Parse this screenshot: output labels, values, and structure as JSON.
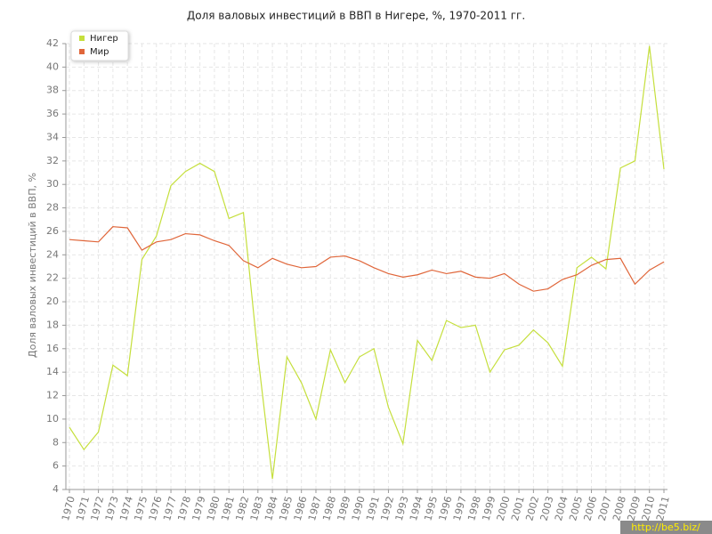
{
  "chart_data": {
    "type": "line",
    "title": "Доля валовых инвестиций в ВВП в Нигере, %, 1970-2011 гг.",
    "y_label": "Доля валовых инвестиций в ВВП, %",
    "categories": [
      "1970",
      "1971",
      "1972",
      "1973",
      "1974",
      "1975",
      "1976",
      "1977",
      "1978",
      "1979",
      "1980",
      "1981",
      "1982",
      "1983",
      "1984",
      "1985",
      "1986",
      "1987",
      "1988",
      "1989",
      "1990",
      "1991",
      "1992",
      "1993",
      "1994",
      "1995",
      "1996",
      "1997",
      "1998",
      "1999",
      "2000",
      "2001",
      "2002",
      "2003",
      "2004",
      "2005",
      "2006",
      "2007",
      "2008",
      "2009",
      "2010",
      "2011"
    ],
    "series": [
      {
        "name": "Нигер",
        "color": "#c5df3c",
        "values": [
          9.3,
          7.4,
          8.9,
          14.6,
          13.7,
          23.6,
          25.6,
          29.9,
          31.1,
          31.8,
          31.1,
          27.1,
          27.6,
          15.4,
          4.9,
          15.3,
          13.1,
          10.0,
          15.9,
          13.1,
          15.3,
          16.0,
          11.0,
          7.9,
          16.7,
          15.0,
          18.4,
          17.8,
          18.0,
          14.0,
          15.9,
          16.3,
          17.6,
          16.5,
          14.5,
          22.9,
          23.8,
          22.8,
          31.4,
          32.0,
          41.8,
          31.3
        ]
      },
      {
        "name": "Мир",
        "color": "#e0663a",
        "values": [
          25.3,
          25.2,
          25.1,
          26.4,
          26.3,
          24.4,
          25.1,
          25.3,
          25.8,
          25.7,
          25.2,
          24.8,
          23.5,
          22.9,
          23.7,
          23.2,
          22.9,
          23.0,
          23.8,
          23.9,
          23.5,
          22.9,
          22.4,
          22.1,
          22.3,
          22.7,
          22.4,
          22.6,
          22.1,
          22.0,
          22.4,
          21.5,
          20.9,
          21.1,
          21.9,
          22.3,
          23.1,
          23.6,
          23.7,
          21.5,
          22.7,
          23.4
        ]
      }
    ],
    "ylim": [
      4,
      42
    ],
    "yticks": [
      4,
      6,
      8,
      10,
      12,
      14,
      16,
      18,
      20,
      22,
      24,
      26,
      28,
      30,
      32,
      34,
      36,
      38,
      40,
      42
    ],
    "grid": true,
    "legend": "top-left"
  },
  "watermark": "http://be5.biz/"
}
